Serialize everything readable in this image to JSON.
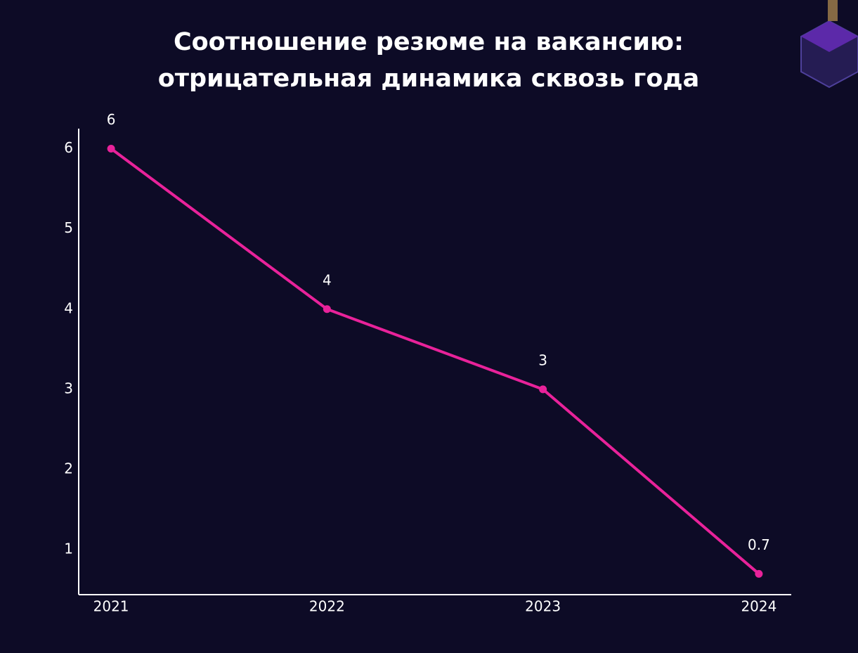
{
  "chart_data": {
    "type": "line",
    "title": "Соотношение резюме на вакансию: отрицательная динамика сквозь года",
    "x": [
      2021,
      2022,
      2023,
      2024
    ],
    "xlim": [
      2020.85,
      2024.15
    ],
    "xticks": [
      2021,
      2022,
      2023,
      2024
    ],
    "series": [
      {
        "color": "#e8229a",
        "values": [
          6,
          4,
          3,
          0.7
        ]
      }
    ],
    "ylim": [
      0.44,
      6.25
    ],
    "yticks": [
      1,
      2,
      3,
      4,
      5,
      6
    ]
  }
}
